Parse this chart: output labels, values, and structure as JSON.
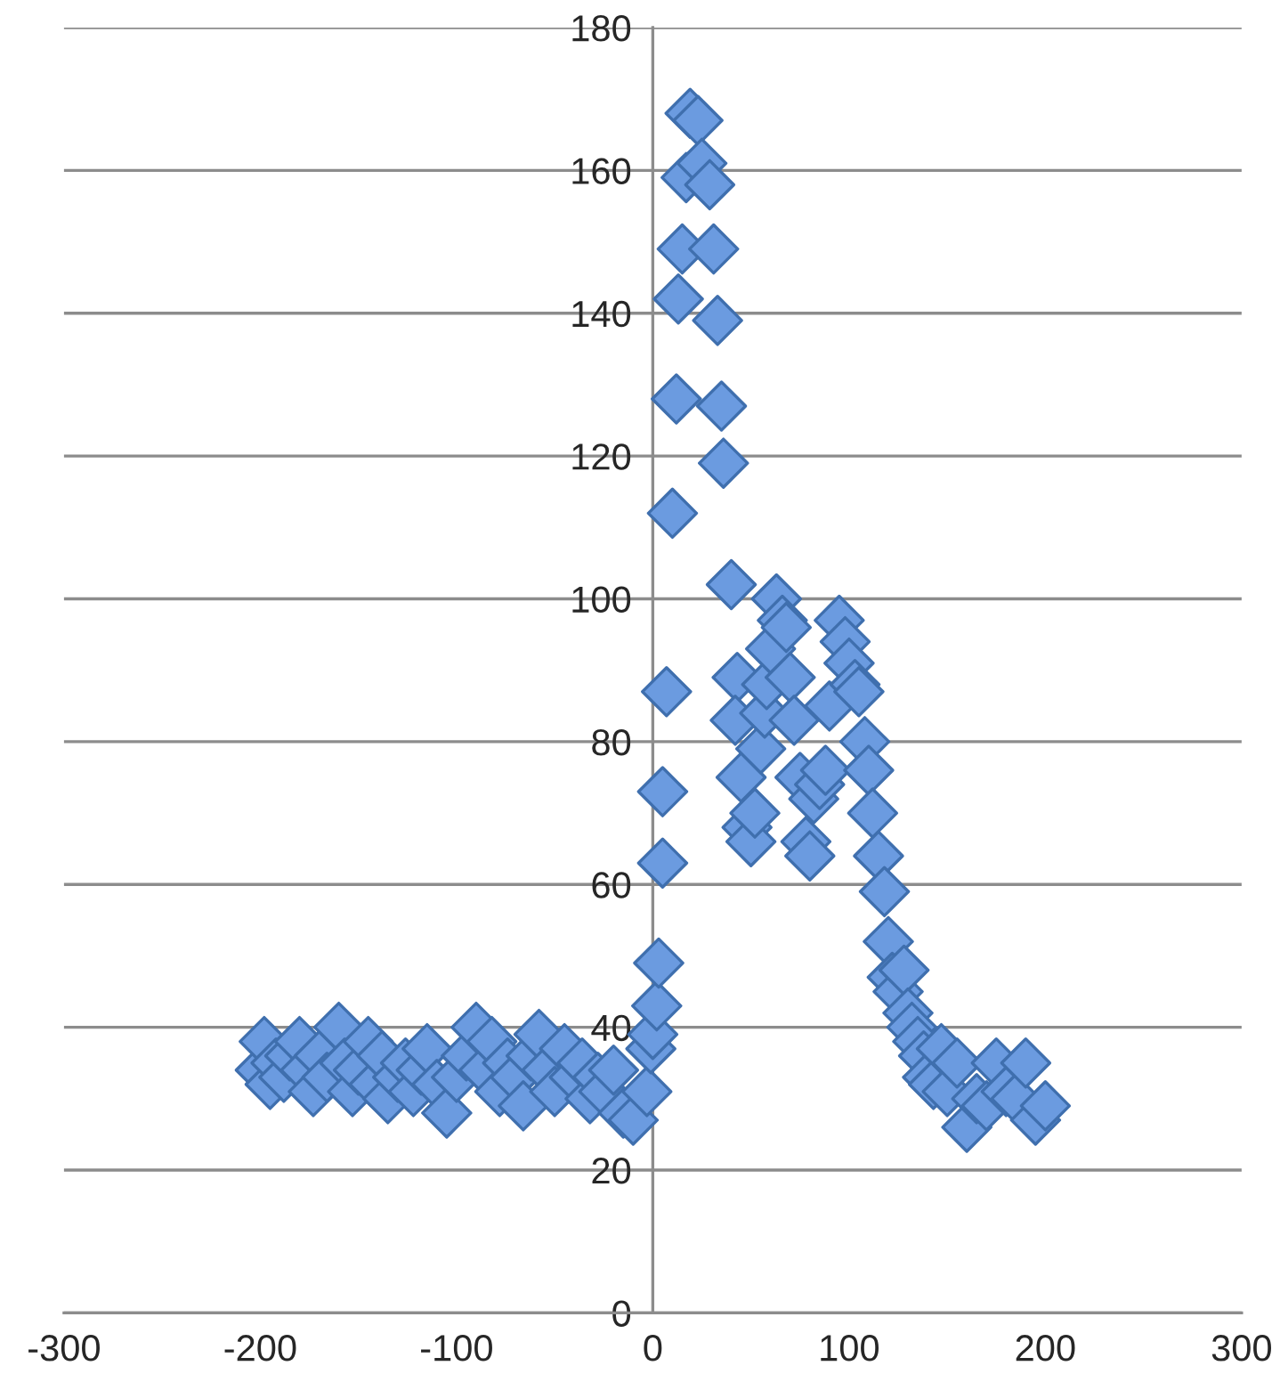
{
  "chart_data": {
    "type": "scatter",
    "marker": "diamond",
    "grid": "y",
    "xlim": [
      -300,
      300
    ],
    "xticks": [
      -300,
      -200,
      -100,
      0,
      100,
      200,
      300
    ],
    "ylim": [
      0,
      180
    ],
    "yticks": [
      0,
      20,
      40,
      60,
      80,
      100,
      120,
      140,
      160,
      180
    ],
    "series": [
      {
        "color": "#6b9be0",
        "x": [
          -200,
          -198,
          -195,
          -192,
          -188,
          -185,
          -180,
          -177,
          -173,
          -170,
          -166,
          -160,
          -157,
          -153,
          -150,
          -145,
          -142,
          -138,
          -135,
          -130,
          -126,
          -122,
          -118,
          -115,
          -110,
          -105,
          -100,
          -95,
          -90,
          -86,
          -82,
          -78,
          -74,
          -70,
          -66,
          -62,
          -58,
          -54,
          -50,
          -45,
          -40,
          -36,
          -32,
          -28,
          -25,
          -20,
          -15,
          -10,
          -3,
          -1,
          0,
          2,
          3,
          5,
          5,
          7,
          10,
          12,
          13,
          15,
          17,
          19,
          23,
          25,
          29,
          31,
          33,
          35,
          36,
          40,
          43,
          42,
          45,
          48,
          50,
          52,
          55,
          57,
          58,
          60,
          63,
          66,
          68,
          70,
          72,
          75,
          78,
          80,
          82,
          85,
          88,
          90,
          95,
          98,
          100,
          103,
          105,
          108,
          110,
          112,
          115,
          118,
          120,
          122,
          125,
          128,
          130,
          132,
          135,
          138,
          140,
          143,
          147,
          150,
          155,
          160,
          165,
          170,
          175,
          180,
          185,
          190,
          195,
          200
        ],
        "values": [
          34,
          38,
          32,
          35,
          33,
          36,
          38,
          34,
          31,
          36,
          33,
          40,
          35,
          31,
          34,
          38,
          32,
          36,
          30,
          33,
          35,
          31,
          34,
          37,
          32,
          28,
          33,
          36,
          40,
          34,
          38,
          31,
          35,
          33,
          29,
          36,
          39,
          34,
          31,
          37,
          33,
          35,
          30,
          33,
          31,
          34,
          28,
          27,
          31,
          37,
          39,
          43,
          49,
          63,
          73,
          87,
          112,
          128,
          142,
          149,
          159,
          168,
          167,
          161,
          158,
          149,
          139,
          127,
          119,
          102,
          89,
          83,
          75,
          68,
          66,
          70,
          79,
          84,
          88,
          93,
          100,
          97,
          96,
          89,
          83,
          75,
          66,
          64,
          72,
          74,
          76,
          85,
          97,
          94,
          91,
          88,
          87,
          80,
          76,
          70,
          64,
          59,
          52,
          47,
          45,
          48,
          42,
          40,
          38,
          36,
          33,
          32,
          37,
          31,
          35,
          26,
          30,
          29,
          35,
          31,
          30,
          35,
          27,
          29
        ]
      }
    ]
  }
}
